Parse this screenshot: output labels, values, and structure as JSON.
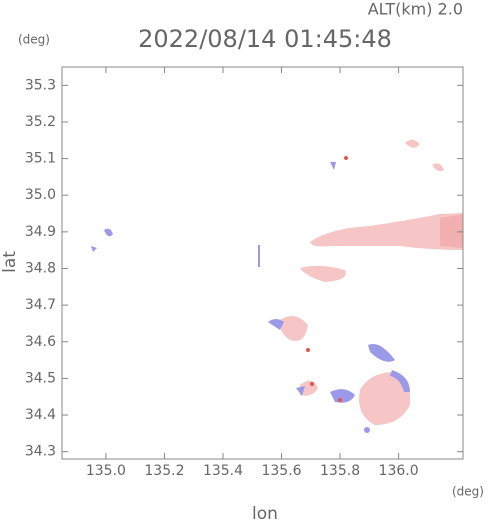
{
  "chart_data": {
    "type": "map",
    "title": "2022/08/14 01:45:48",
    "subtitle": "ALT(km) 2.0",
    "x_label": "lon",
    "y_label": "lat",
    "x_unit": "(deg)",
    "y_unit": "(deg)",
    "xlim": [
      134.85,
      136.22
    ],
    "ylim": [
      34.28,
      35.35
    ],
    "xticks": [
      {
        "value": 135,
        "label": "135.0"
      },
      135.2,
      135.4,
      135.6,
      135.8,
      {
        "value": 136,
        "label": "136.0"
      }
    ],
    "yticks": [
      34.3,
      34.4,
      34.5,
      34.6,
      34.7,
      34.8,
      34.9,
      {
        "value": 35,
        "label": "35.0"
      },
      35.1,
      35.2,
      35.3
    ],
    "grid": false
  }
}
